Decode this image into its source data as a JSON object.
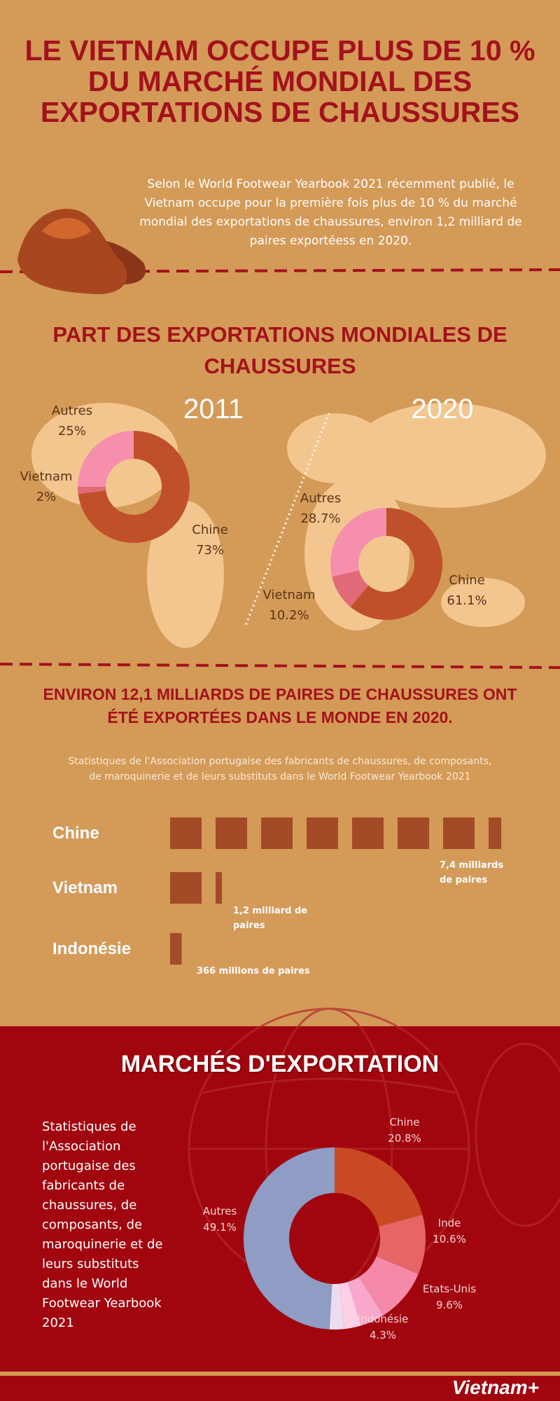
{
  "header": {
    "title": "LE VIETNAM OCCUPE PLUS DE 10 % DU MARCHÉ MONDIAL DES EXPORTATIONS DE CHAUSSURES",
    "intro": "Selon le World Footwear Yearbook 2021 récemment publié, le Vietnam occupe pour la première fois plus de 10 % du marché mondial des exportations de chaussures, environ 1,2 milliard de paires exportéess en 2020."
  },
  "chart_data": [
    {
      "type": "pie",
      "title": "PART DES EXPORTATIONS MONDIALES DE CHAUSSURES",
      "subtitle": "2011",
      "categories": [
        "Chine",
        "Vietnam",
        "Autres"
      ],
      "values": [
        73,
        2,
        25
      ],
      "value_labels": [
        "73%",
        "2%",
        "25%"
      ],
      "colors": [
        "#c0502a",
        "#e06a78",
        "#f58fac"
      ]
    },
    {
      "type": "pie",
      "subtitle": "2020",
      "categories": [
        "Chine",
        "Vietnam",
        "Autres"
      ],
      "values": [
        61.1,
        10.2,
        28.7
      ],
      "value_labels": [
        "61.1%",
        "10.2%",
        "28.7%"
      ],
      "colors": [
        "#c0502a",
        "#e06a78",
        "#f58fac"
      ]
    },
    {
      "type": "bar",
      "title": "ENVIRON 12,1 MILLIARDS DE PAIRES DE CHAUSSURES ONT ÉTÉ EXPORTÉES DANS LE MONDE EN 2020.",
      "subtitle": "Statistiques de l'Association portugaise des fabricants de chaussures, de composants, de maroquinerie et de leurs substituts dans le World Footwear Yearbook 2021",
      "categories": [
        "Chine",
        "Vietnam",
        "Indonésie"
      ],
      "values": [
        7.4,
        1.2,
        0.366
      ],
      "value_labels": [
        "7,4 milliards de paires",
        "1,2 milliard de paires",
        "366 millions de paires"
      ],
      "color": "#a34a26"
    },
    {
      "type": "pie",
      "title": "MARCHÉS D'EXPORTATION",
      "note": "Statistiques de l'Association portugaise des fabricants de chaussures, de composants, de maroquinerie et de leurs substituts dans le World Footwear Yearbook 2021",
      "categories": [
        "Chine",
        "Inde",
        "Etats-Unis",
        "Indonésie",
        null,
        null,
        "Autres"
      ],
      "values": [
        20.8,
        10.6,
        9.6,
        4.3,
        3.0,
        2.6,
        49.1
      ],
      "value_labels": [
        "20.8%",
        "10.6%",
        "9.6%",
        "4.3%",
        null,
        null,
        "49.1%"
      ],
      "colors": [
        "#c94a22",
        "#e66666",
        "#f48aa8",
        "#f7a8cc",
        "#fcd0e6",
        "#ecdcf0",
        "#8f9cc4"
      ]
    }
  ],
  "footer": {
    "logo": "Vietnam+"
  }
}
